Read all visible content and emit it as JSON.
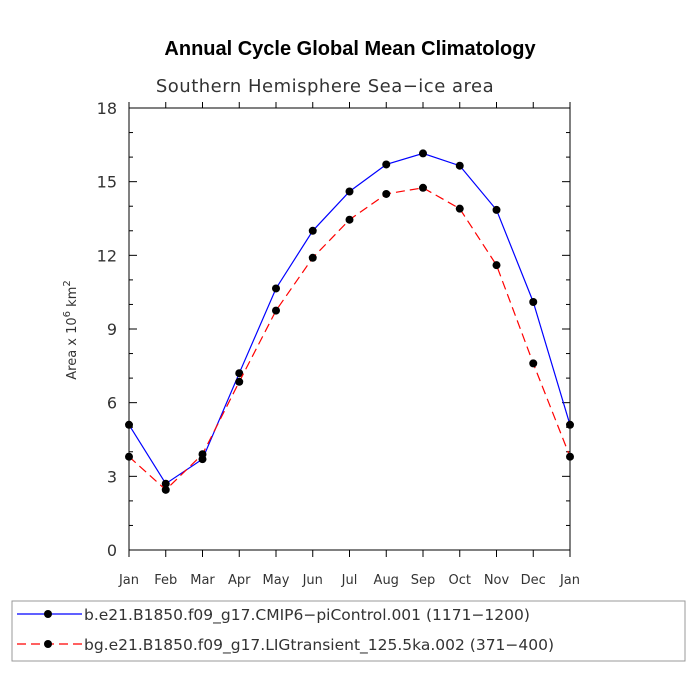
{
  "chart_data": {
    "type": "line",
    "title": "Annual Cycle Global Mean Climatology",
    "subtitle": "Southern Hemisphere Sea−ice area",
    "ylabel": {
      "prefix": "Area x 10",
      "exponent_1": "6",
      "middle": " km",
      "exponent_2": "2"
    },
    "categories": [
      "Jan",
      "Feb",
      "Mar",
      "Apr",
      "May",
      "Jun",
      "Jul",
      "Aug",
      "Sep",
      "Oct",
      "Nov",
      "Dec",
      "Jan"
    ],
    "ylim": [
      0,
      18
    ],
    "yticks": [
      0,
      3,
      6,
      9,
      12,
      15,
      18
    ],
    "grid": false,
    "legend_placement": "bottom",
    "series": [
      {
        "name": "b.e21.B1850.f09_g17.CMIP6−piControl.001 (1171−1200)",
        "color": "#0000ff",
        "line_style": "solid",
        "values": [
          5.1,
          2.7,
          3.7,
          7.2,
          10.65,
          13.0,
          14.6,
          15.7,
          16.15,
          15.65,
          13.85,
          10.1,
          5.1
        ]
      },
      {
        "name": "bg.e21.B1850.f09_g17.LIGtransient_125.5ka.002 (371−400)",
        "color": "#ff0000",
        "line_style": "dashed",
        "values": [
          3.8,
          2.45,
          3.9,
          6.85,
          9.75,
          11.9,
          13.45,
          14.5,
          14.75,
          13.9,
          11.6,
          7.6,
          3.8
        ]
      }
    ]
  }
}
